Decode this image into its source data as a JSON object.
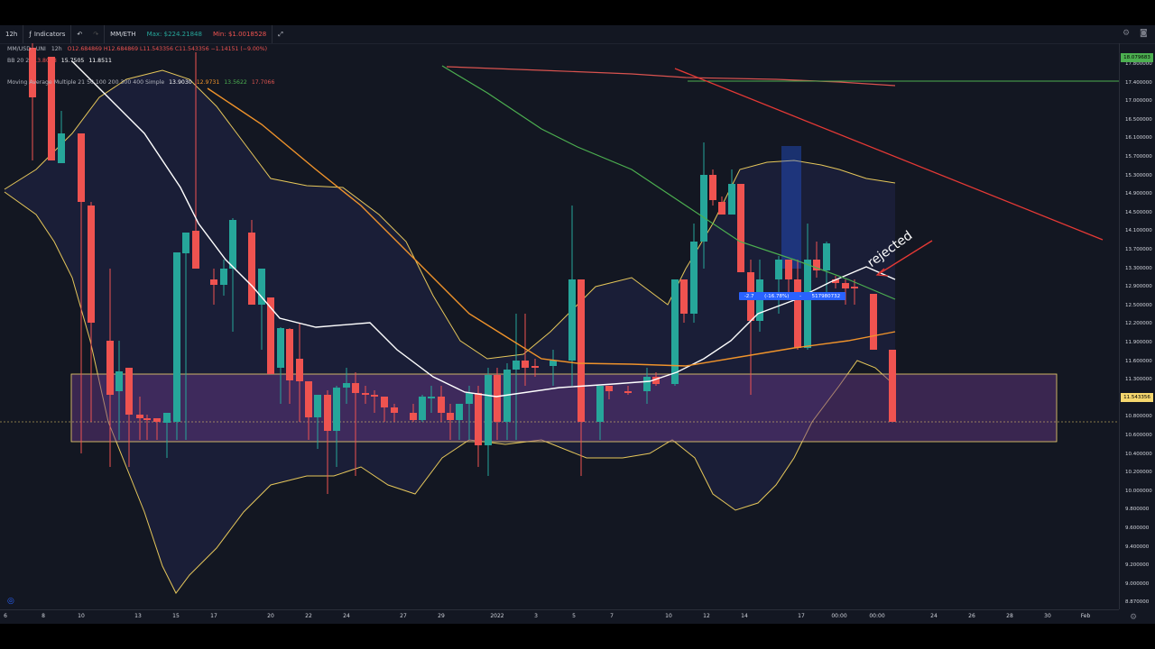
{
  "toolbar": {
    "interval": "12h",
    "indicators_label": "Indicators",
    "compare_symbol": "MM/ETH",
    "max_text": "Max: $224.21848",
    "min_text": "Min: $1.0018528"
  },
  "legend": {
    "symbol_line": "MM/USD · UNI",
    "interval": "12h",
    "ohlc": "O12.684869 H12.684869 L11.543356 C11.543356 −1.14151 (−9.00%)",
    "bb_label": "BB 20 2",
    "bb_values": [
      "13.8008",
      "15.7505",
      "11.8511"
    ],
    "ma_label": "Moving Average Multiple 21 50 100 200 300 400 Simple",
    "ma_values": [
      "13.9030",
      "12.9731",
      "13.5622",
      "17.7066"
    ]
  },
  "annotation": {
    "text": "rejected"
  },
  "measure": {
    "items": [
      "-2.7",
      "(-16.78%)",
      "-",
      "517980732"
    ]
  },
  "y_axis": {
    "labels": [
      "17.800000",
      "17.400000",
      "17.000000",
      "16.500000",
      "16.100000",
      "15.700000",
      "15.300000",
      "14.900000",
      "14.500000",
      "14.100000",
      "13.700000",
      "13.300000",
      "12.900000",
      "12.500000",
      "12.200000",
      "11.900000",
      "11.600000",
      "11.300000",
      "11.000000",
      "10.800000",
      "10.600000",
      "10.400000",
      "10.200000",
      "10.000000",
      "9.800000",
      "9.600000",
      "9.400000",
      "9.200000",
      "9.000000",
      "8.870000"
    ],
    "current_price": "11.543356",
    "upper_line_price": "18.079683"
  },
  "x_axis": {
    "labels": [
      "6",
      "8",
      "10",
      "13",
      "15",
      "17",
      "20",
      "22",
      "24",
      "27",
      "29",
      "2022",
      "3",
      "5",
      "7",
      "10",
      "12",
      "14",
      "17",
      "00:00",
      "00:00",
      "24",
      "26",
      "28",
      "30",
      "Feb"
    ]
  },
  "colors": {
    "background": "#131722",
    "up": "#26a69a",
    "down": "#ef5350",
    "zone_fill": "#6a3a8a",
    "zone_border": "#f5d76e",
    "bb_band": "#e6c75a",
    "ma_white": "#ffffff",
    "ma_orange": "#f0932b",
    "ma_green": "#4caf50",
    "ma_red": "#d9534f"
  }
}
